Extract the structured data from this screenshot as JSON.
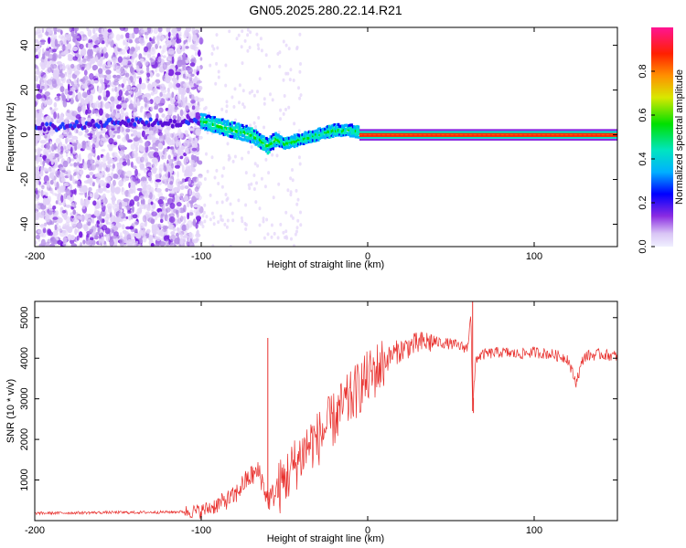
{
  "figure": {
    "title": "GN05.2025.280.22.14.R21"
  },
  "chart_data": [
    {
      "type": "heatmap",
      "title": "GN05.2025.280.22.14.R21",
      "xlabel": "Height of straight line (km)",
      "ylabel": "Frequency (Hz)",
      "xlim": [
        -200,
        150
      ],
      "ylim": [
        -50,
        48
      ],
      "x_ticks": [
        -200,
        -100,
        0,
        100
      ],
      "y_ticks": [
        -40,
        -20,
        0,
        20,
        40
      ],
      "colorbar": {
        "label": "Normalized spectral amplitude",
        "range": [
          0,
          1
        ],
        "ticks": [
          0,
          0.2,
          0.4,
          0.6,
          0.8
        ],
        "tick_labels": [
          "0.0",
          "0.2",
          "0.4",
          "0.6",
          "0.8"
        ]
      },
      "ridge_center_hz": {
        "x": [
          -200,
          -160,
          -140,
          -120,
          -100,
          -90,
          -80,
          -70,
          -60,
          -55,
          -50,
          -45,
          -40,
          -35,
          -30,
          -25,
          -20,
          -15,
          -10,
          -5,
          0,
          50,
          100,
          150
        ],
        "y": [
          3,
          5,
          6,
          5,
          6,
          4,
          2,
          0,
          -5,
          -2,
          -4,
          -3,
          -2,
          -1,
          0,
          1,
          2,
          2,
          2,
          1,
          0,
          0,
          0,
          0
        ]
      },
      "scatter_noise_region_km": [
        -200,
        -100
      ]
    },
    {
      "type": "line",
      "xlabel": "Height of straight line (km)",
      "ylabel": "SNR (10 * v/v)",
      "xlim": [
        -200,
        150
      ],
      "ylim": [
        0,
        5400
      ],
      "x_ticks": [
        -200,
        -100,
        0,
        100
      ],
      "y_ticks": [
        1000,
        2000,
        3000,
        4000,
        5000
      ],
      "series": [
        {
          "name": "SNR",
          "color": "#e8302d",
          "x": [
            -200,
            -180,
            -160,
            -140,
            -120,
            -110,
            -100,
            -90,
            -80,
            -75,
            -70,
            -65,
            -60,
            -55,
            -50,
            -45,
            -40,
            -35,
            -30,
            -25,
            -20,
            -15,
            -10,
            -5,
            0,
            5,
            10,
            15,
            20,
            25,
            30,
            35,
            40,
            45,
            50,
            55,
            60,
            62,
            63,
            65,
            70,
            80,
            90,
            100,
            110,
            120,
            125,
            130,
            140,
            150
          ],
          "y": [
            180,
            190,
            200,
            200,
            210,
            220,
            230,
            400,
            600,
            900,
            1100,
            1200,
            500,
            700,
            1000,
            1300,
            1600,
            1900,
            2000,
            2300,
            2500,
            2800,
            3000,
            3300,
            3500,
            3700,
            3900,
            4100,
            4200,
            4300,
            4350,
            4400,
            4400,
            4380,
            4350,
            4300,
            4250,
            5200,
            2700,
            4000,
            4100,
            4150,
            4100,
            4150,
            4100,
            4000,
            3400,
            4050,
            4100,
            4050
          ]
        }
      ],
      "spikes": [
        {
          "x": -60,
          "y": 4500
        },
        {
          "x": 63,
          "y": 5400
        },
        {
          "x": 63.5,
          "y": 2650
        }
      ]
    }
  ]
}
